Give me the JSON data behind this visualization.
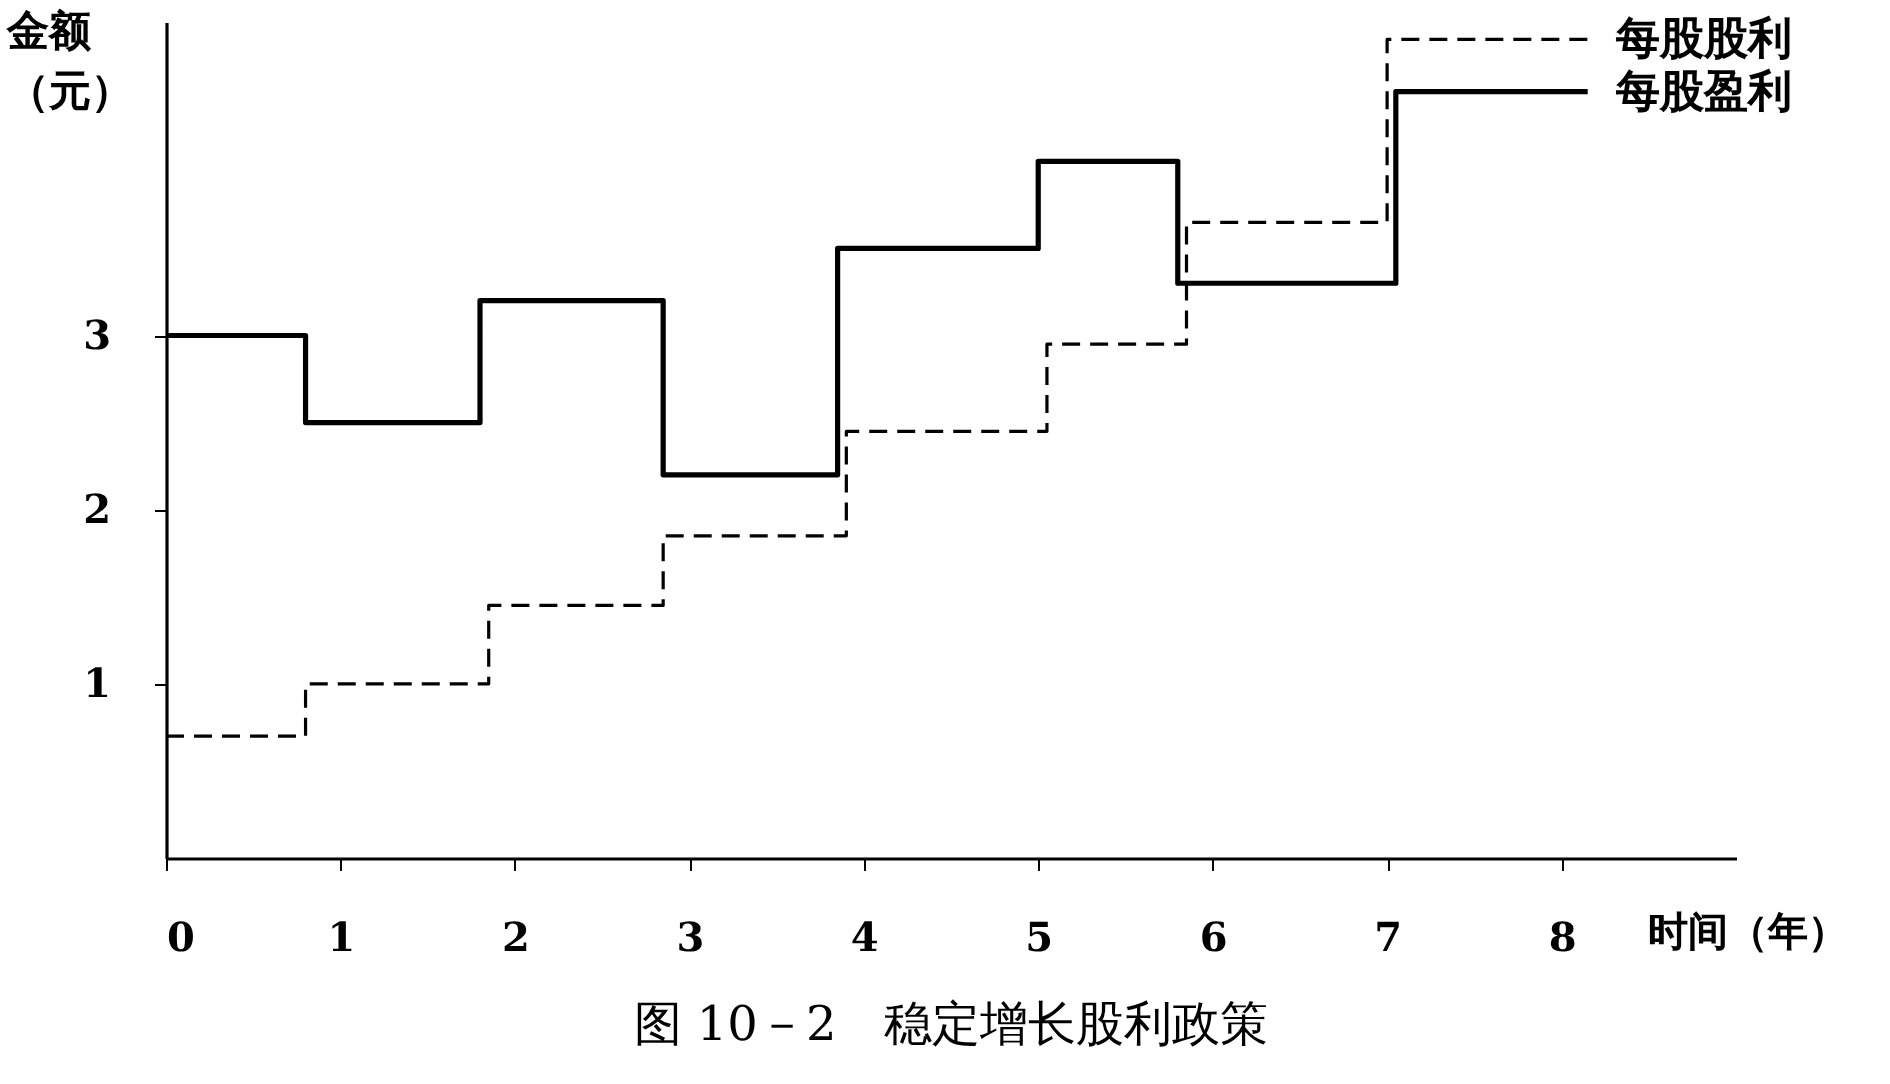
{
  "chart_data": {
    "type": "step",
    "title": "图 10－2　稳定增长股利政策",
    "xlabel": "时间（年）",
    "ylabel": "金额（元）",
    "xlim": [
      0,
      9
    ],
    "xticks": [
      0,
      1,
      2,
      3,
      4,
      5,
      6,
      7,
      8
    ],
    "ylim": [
      0,
      4.8
    ],
    "yticks": [
      1,
      2,
      3
    ],
    "grid": false,
    "legend": false,
    "series": [
      {
        "name": "每股股利",
        "color": "#000000",
        "line_style": "dashed",
        "x": [
          0,
          0.8,
          1.85,
          2.85,
          3.9,
          5.05,
          5.85,
          7.0,
          8.15
        ],
        "values": [
          0.7,
          1.0,
          1.45,
          1.85,
          2.45,
          2.95,
          3.65,
          4.7,
          4.7
        ]
      },
      {
        "name": "每股盈利",
        "color": "#000000",
        "line_style": "solid",
        "x": [
          0,
          0.8,
          1.8,
          2.85,
          3.85,
          5.0,
          5.8,
          7.05,
          8.15
        ],
        "values": [
          3.0,
          2.5,
          3.2,
          2.2,
          3.5,
          4.0,
          3.3,
          4.4,
          4.4
        ]
      }
    ]
  }
}
